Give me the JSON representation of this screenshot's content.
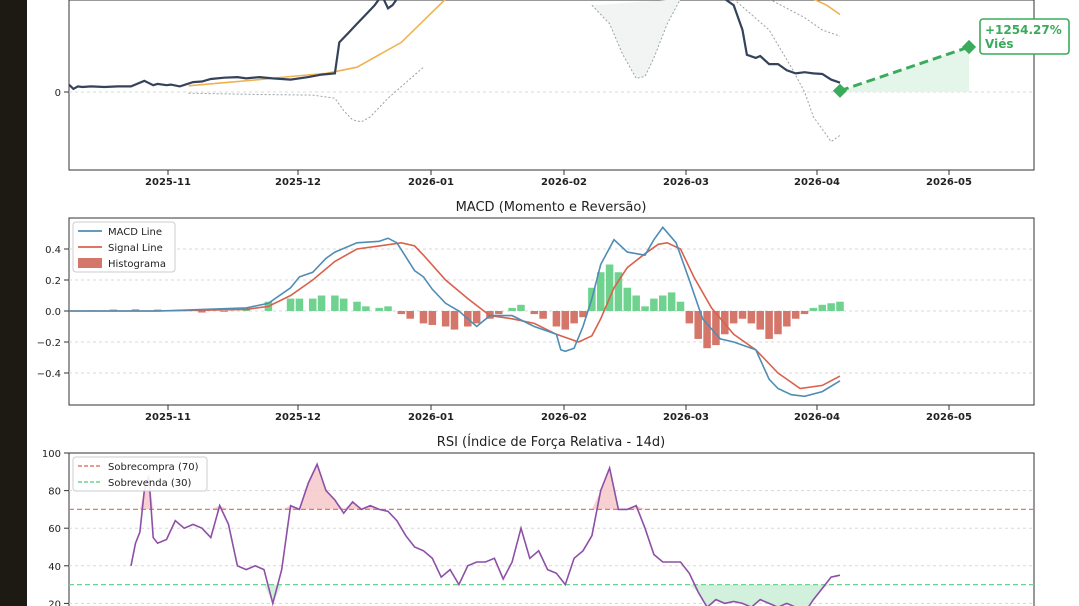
{
  "colors": {
    "price": "#34425a",
    "sma": "#f0b24e",
    "band": "#9aa3a6",
    "bias": "#3aab5c",
    "macd": "#4f8db4",
    "signal": "#d8624c",
    "hist_pos": "#6fd38f",
    "hist_neg": "#d5766a",
    "rsi": "#8e4fa6",
    "overbought": "#e07b6b",
    "oversold": "#6fd38f",
    "grid": "#d8d8d8"
  },
  "chart_data": [
    {
      "type": "line",
      "panel": "price",
      "title": "",
      "x_ticks": [
        "2025-11",
        "2025-12",
        "2026-01",
        "2026-02",
        "2026-03",
        "2026-04",
        "2026-05"
      ],
      "y_ticks": [
        "0"
      ],
      "ylim": [
        -120,
        140
      ],
      "series": [
        {
          "role": "price",
          "x": [
            0,
            1,
            2,
            3,
            5,
            8,
            11,
            14,
            17,
            19,
            20,
            22,
            23,
            25,
            28,
            30,
            32,
            35,
            38,
            40,
            43,
            46,
            50,
            54,
            57,
            60,
            61,
            63,
            65,
            67,
            69,
            70,
            71,
            72,
            73,
            74,
            75,
            77,
            79
          ],
          "y": [
            12,
            5,
            9,
            8,
            9,
            8,
            9,
            9,
            18,
            11,
            13,
            11,
            12,
            9,
            16,
            17,
            21,
            23,
            24,
            22,
            24,
            22,
            20,
            24,
            28,
            30,
            80,
            95,
            110,
            125,
            140,
            150,
            150,
            135,
            140,
            150,
            150,
            150,
            150
          ]
        },
        {
          "role": "price_late",
          "x": [
            148,
            150,
            152,
            153,
            155,
            156,
            158,
            160,
            162,
            164,
            166,
            167,
            168,
            170,
            172,
            174
          ],
          "y": [
            150,
            140,
            100,
            60,
            55,
            58,
            45,
            45,
            35,
            30,
            32,
            31,
            30,
            29,
            20,
            15
          ]
        },
        {
          "role": "sma",
          "x": [
            27,
            35,
            43,
            50,
            58,
            65,
            75,
            85
          ],
          "y": [
            10,
            15,
            20,
            25,
            30,
            40,
            80,
            150
          ]
        }
      ],
      "bias_projection": {
        "from": [
          174,
          2
        ],
        "to": [
          195,
          45
        ],
        "label": "+1254.27%\nViés"
      }
    },
    {
      "type": "line",
      "panel": "macd",
      "title": "MACD (Momento e Reversão)",
      "x_ticks": [
        "2025-11",
        "2025-12",
        "2026-01",
        "2026-02",
        "2026-03",
        "2026-04",
        "2026-05"
      ],
      "y_ticks": [
        "0.4",
        "0.2",
        "0.0",
        "−0.2",
        "−0.4"
      ],
      "ylim": [
        -0.6,
        0.6
      ],
      "legend": [
        "MACD Line",
        "Signal Line",
        "Histograma"
      ],
      "series": [
        {
          "name": "MACD Line",
          "x": [
            0,
            20,
            40,
            45,
            50,
            52,
            55,
            58,
            60,
            65,
            70,
            72,
            74,
            76,
            78,
            80,
            82,
            85,
            88,
            90,
            92,
            95,
            100,
            105,
            110,
            111,
            112,
            114,
            116,
            118,
            120,
            123,
            126,
            130,
            132,
            134,
            137,
            140,
            143,
            147,
            150,
            155,
            158,
            160,
            163,
            166,
            170,
            174
          ],
          "y": [
            0.0,
            0.0,
            0.02,
            0.05,
            0.15,
            0.22,
            0.25,
            0.34,
            0.38,
            0.44,
            0.45,
            0.47,
            0.44,
            0.35,
            0.26,
            0.22,
            0.14,
            0.05,
            0.0,
            -0.05,
            -0.1,
            -0.03,
            -0.03,
            -0.1,
            -0.15,
            -0.25,
            -0.26,
            -0.24,
            -0.1,
            0.08,
            0.3,
            0.46,
            0.38,
            0.36,
            0.46,
            0.54,
            0.44,
            0.2,
            -0.05,
            -0.18,
            -0.2,
            -0.25,
            -0.44,
            -0.5,
            -0.54,
            -0.55,
            -0.52,
            -0.45
          ]
        },
        {
          "name": "Signal Line",
          "x": [
            0,
            20,
            40,
            45,
            50,
            55,
            60,
            65,
            70,
            75,
            78,
            80,
            85,
            90,
            95,
            100,
            105,
            110,
            115,
            118,
            120,
            123,
            126,
            130,
            133,
            135,
            138,
            141,
            145,
            150,
            155,
            160,
            165,
            170,
            174
          ],
          "y": [
            0.0,
            0.0,
            0.01,
            0.03,
            0.1,
            0.2,
            0.32,
            0.4,
            0.42,
            0.44,
            0.42,
            0.36,
            0.2,
            0.08,
            -0.03,
            -0.05,
            -0.08,
            -0.15,
            -0.2,
            -0.16,
            -0.05,
            0.15,
            0.28,
            0.37,
            0.43,
            0.44,
            0.4,
            0.22,
            0.02,
            -0.15,
            -0.25,
            -0.4,
            -0.5,
            -0.48,
            -0.42
          ]
        }
      ],
      "histogram": {
        "x": [
          0,
          5,
          10,
          15,
          20,
          25,
          30,
          35,
          40,
          45,
          50,
          52,
          55,
          57,
          60,
          62,
          65,
          67,
          70,
          72,
          75,
          77,
          80,
          82,
          85,
          87,
          90,
          92,
          95,
          97,
          100,
          102,
          105,
          107,
          110,
          112,
          114,
          116,
          118,
          120,
          122,
          124,
          126,
          128,
          130,
          132,
          134,
          136,
          138,
          140,
          142,
          144,
          146,
          148,
          150,
          152,
          154,
          156,
          158,
          160,
          162,
          164,
          166,
          168,
          170,
          172,
          174
        ],
        "y": [
          0.0,
          0.005,
          0.01,
          0.012,
          0.01,
          0.0,
          -0.01,
          -0.005,
          0.02,
          0.06,
          0.08,
          0.08,
          0.08,
          0.1,
          0.1,
          0.08,
          0.06,
          0.03,
          0.02,
          0.03,
          -0.02,
          -0.05,
          -0.08,
          -0.09,
          -0.1,
          -0.12,
          -0.1,
          -0.08,
          -0.05,
          -0.02,
          0.02,
          0.04,
          -0.02,
          -0.05,
          -0.1,
          -0.12,
          -0.08,
          -0.04,
          0.15,
          0.25,
          0.3,
          0.25,
          0.15,
          0.1,
          0.03,
          0.08,
          0.1,
          0.12,
          0.06,
          -0.08,
          -0.18,
          -0.24,
          -0.22,
          -0.15,
          -0.08,
          -0.05,
          -0.08,
          -0.12,
          -0.18,
          -0.15,
          -0.1,
          -0.05,
          -0.02,
          0.02,
          0.04,
          0.05,
          0.06
        ]
      }
    },
    {
      "type": "line",
      "panel": "rsi",
      "title": "RSI (Índice de Força Relativa - 14d)",
      "y_ticks": [
        "100",
        "80",
        "60",
        "40",
        "20"
      ],
      "ylim": [
        20,
        100
      ],
      "legend": [
        "Sobrecompra (70)",
        "Sobrevenda (30)"
      ],
      "series": [
        {
          "name": "RSI",
          "x": [
            14,
            15,
            16,
            17,
            18,
            19,
            20,
            22,
            24,
            26,
            28,
            30,
            32,
            34,
            36,
            38,
            40,
            42,
            44,
            46,
            48,
            50,
            52,
            54,
            56,
            58,
            60,
            62,
            64,
            66,
            68,
            70,
            72,
            74,
            76,
            78,
            80,
            82,
            84,
            86,
            88,
            90,
            92,
            94,
            96,
            98,
            100,
            102,
            104,
            106,
            108,
            110,
            112,
            114,
            116,
            118,
            120,
            122,
            124,
            126,
            128,
            130,
            132,
            134,
            136,
            138,
            140,
            142,
            144,
            146,
            148,
            150,
            152,
            154,
            156,
            158,
            160,
            162,
            164,
            166,
            168,
            170,
            172,
            174
          ],
          "y": [
            40,
            52,
            58,
            80,
            88,
            55,
            52,
            54,
            64,
            60,
            62,
            60,
            55,
            72,
            62,
            40,
            38,
            40,
            38,
            20,
            38,
            72,
            70,
            84,
            94,
            80,
            75,
            68,
            74,
            70,
            72,
            70,
            69,
            64,
            56,
            50,
            48,
            44,
            34,
            38,
            30,
            40,
            42,
            42,
            44,
            33,
            42,
            60,
            44,
            48,
            38,
            36,
            30,
            44,
            48,
            56,
            80,
            92,
            70,
            70,
            72,
            60,
            46,
            42,
            42,
            42,
            36,
            26,
            18,
            22,
            20,
            21,
            20,
            18,
            22,
            20,
            18,
            20,
            18,
            15,
            22,
            28,
            34,
            35
          ]
        }
      ]
    }
  ]
}
